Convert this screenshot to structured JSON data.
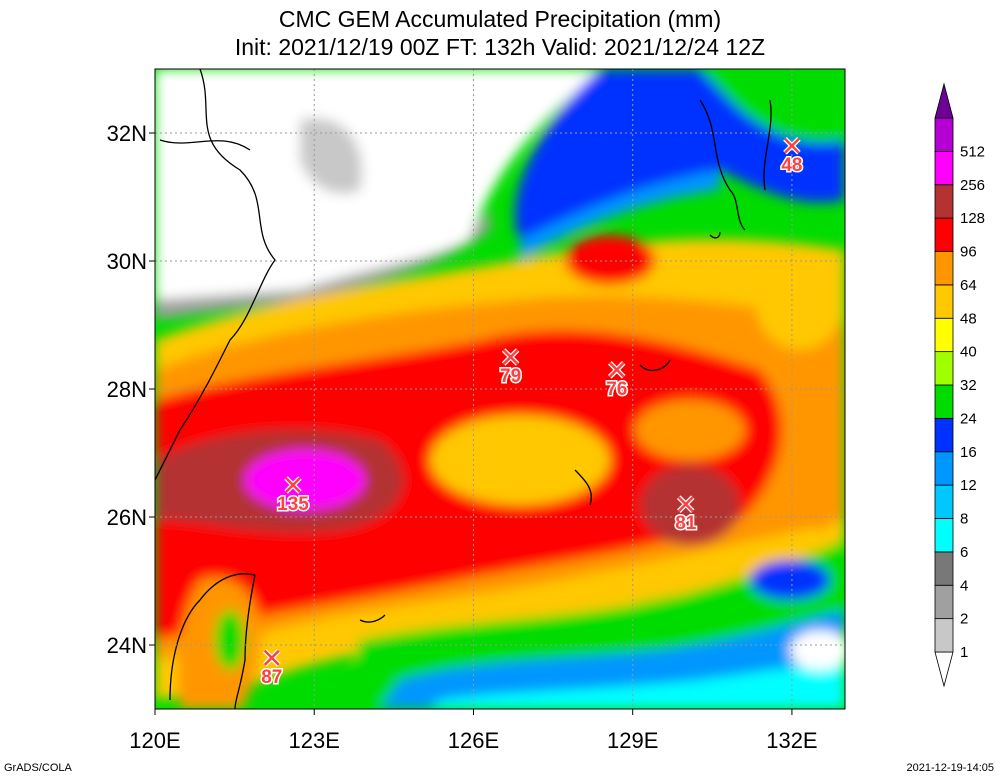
{
  "header": {
    "title": "CMC GEM Accumulated Precipitation (mm)",
    "subtitle": "Init: 2021/12/19 00Z  FT: 132h  Valid: 2021/12/24 12Z"
  },
  "footer": {
    "credit": "GrADS/COLA",
    "timestamp": "2021-12-19-14:05"
  },
  "chart_data": {
    "type": "heatmap",
    "title": "CMC GEM Accumulated Precipitation (mm)",
    "subtitle": "Init: 2021/12/19 00Z  FT: 132h  Valid: 2021/12/24 12Z",
    "xlim": [
      120,
      133
    ],
    "ylim": [
      23,
      33
    ],
    "x_ticks": [
      {
        "value": 120,
        "label": "120E"
      },
      {
        "value": 123,
        "label": "123E"
      },
      {
        "value": 126,
        "label": "126E"
      },
      {
        "value": 129,
        "label": "129E"
      },
      {
        "value": 132,
        "label": "132E"
      }
    ],
    "y_ticks": [
      {
        "value": 24,
        "label": "24N"
      },
      {
        "value": 26,
        "label": "26N"
      },
      {
        "value": 28,
        "label": "28N"
      },
      {
        "value": 30,
        "label": "30N"
      },
      {
        "value": 32,
        "label": "32N"
      }
    ],
    "grid": true,
    "colorbar": {
      "position": "right",
      "levels": [
        {
          "label": "1",
          "color": "#c8c8c8"
        },
        {
          "label": "2",
          "color": "#a0a0a0"
        },
        {
          "label": "4",
          "color": "#787878"
        },
        {
          "label": "6",
          "color": "#00ffff"
        },
        {
          "label": "8",
          "color": "#00c8ff"
        },
        {
          "label": "12",
          "color": "#0096ff"
        },
        {
          "label": "16",
          "color": "#0032ff"
        },
        {
          "label": "24",
          "color": "#00dc00"
        },
        {
          "label": "32",
          "color": "#a0ff00"
        },
        {
          "label": "40",
          "color": "#ffff00"
        },
        {
          "label": "48",
          "color": "#ffc800"
        },
        {
          "label": "64",
          "color": "#ff9600"
        },
        {
          "label": "96",
          "color": "#ff0000"
        },
        {
          "label": "128",
          "color": "#b43232"
        },
        {
          "label": "256",
          "color": "#ff00ff"
        },
        {
          "label": "512",
          "color": "#b400d2"
        }
      ],
      "top_color": "#6e0096"
    },
    "maxima": [
      {
        "lon": 122.6,
        "lat": 26.5,
        "value": 135
      },
      {
        "lon": 126.7,
        "lat": 28.5,
        "value": 79
      },
      {
        "lon": 128.7,
        "lat": 28.3,
        "value": 76
      },
      {
        "lon": 130.0,
        "lat": 26.2,
        "value": 81
      },
      {
        "lon": 132.0,
        "lat": 31.8,
        "value": 48
      },
      {
        "lon": 122.2,
        "lat": 23.8,
        "value": 87
      }
    ],
    "marker_color": "#ff4040"
  }
}
